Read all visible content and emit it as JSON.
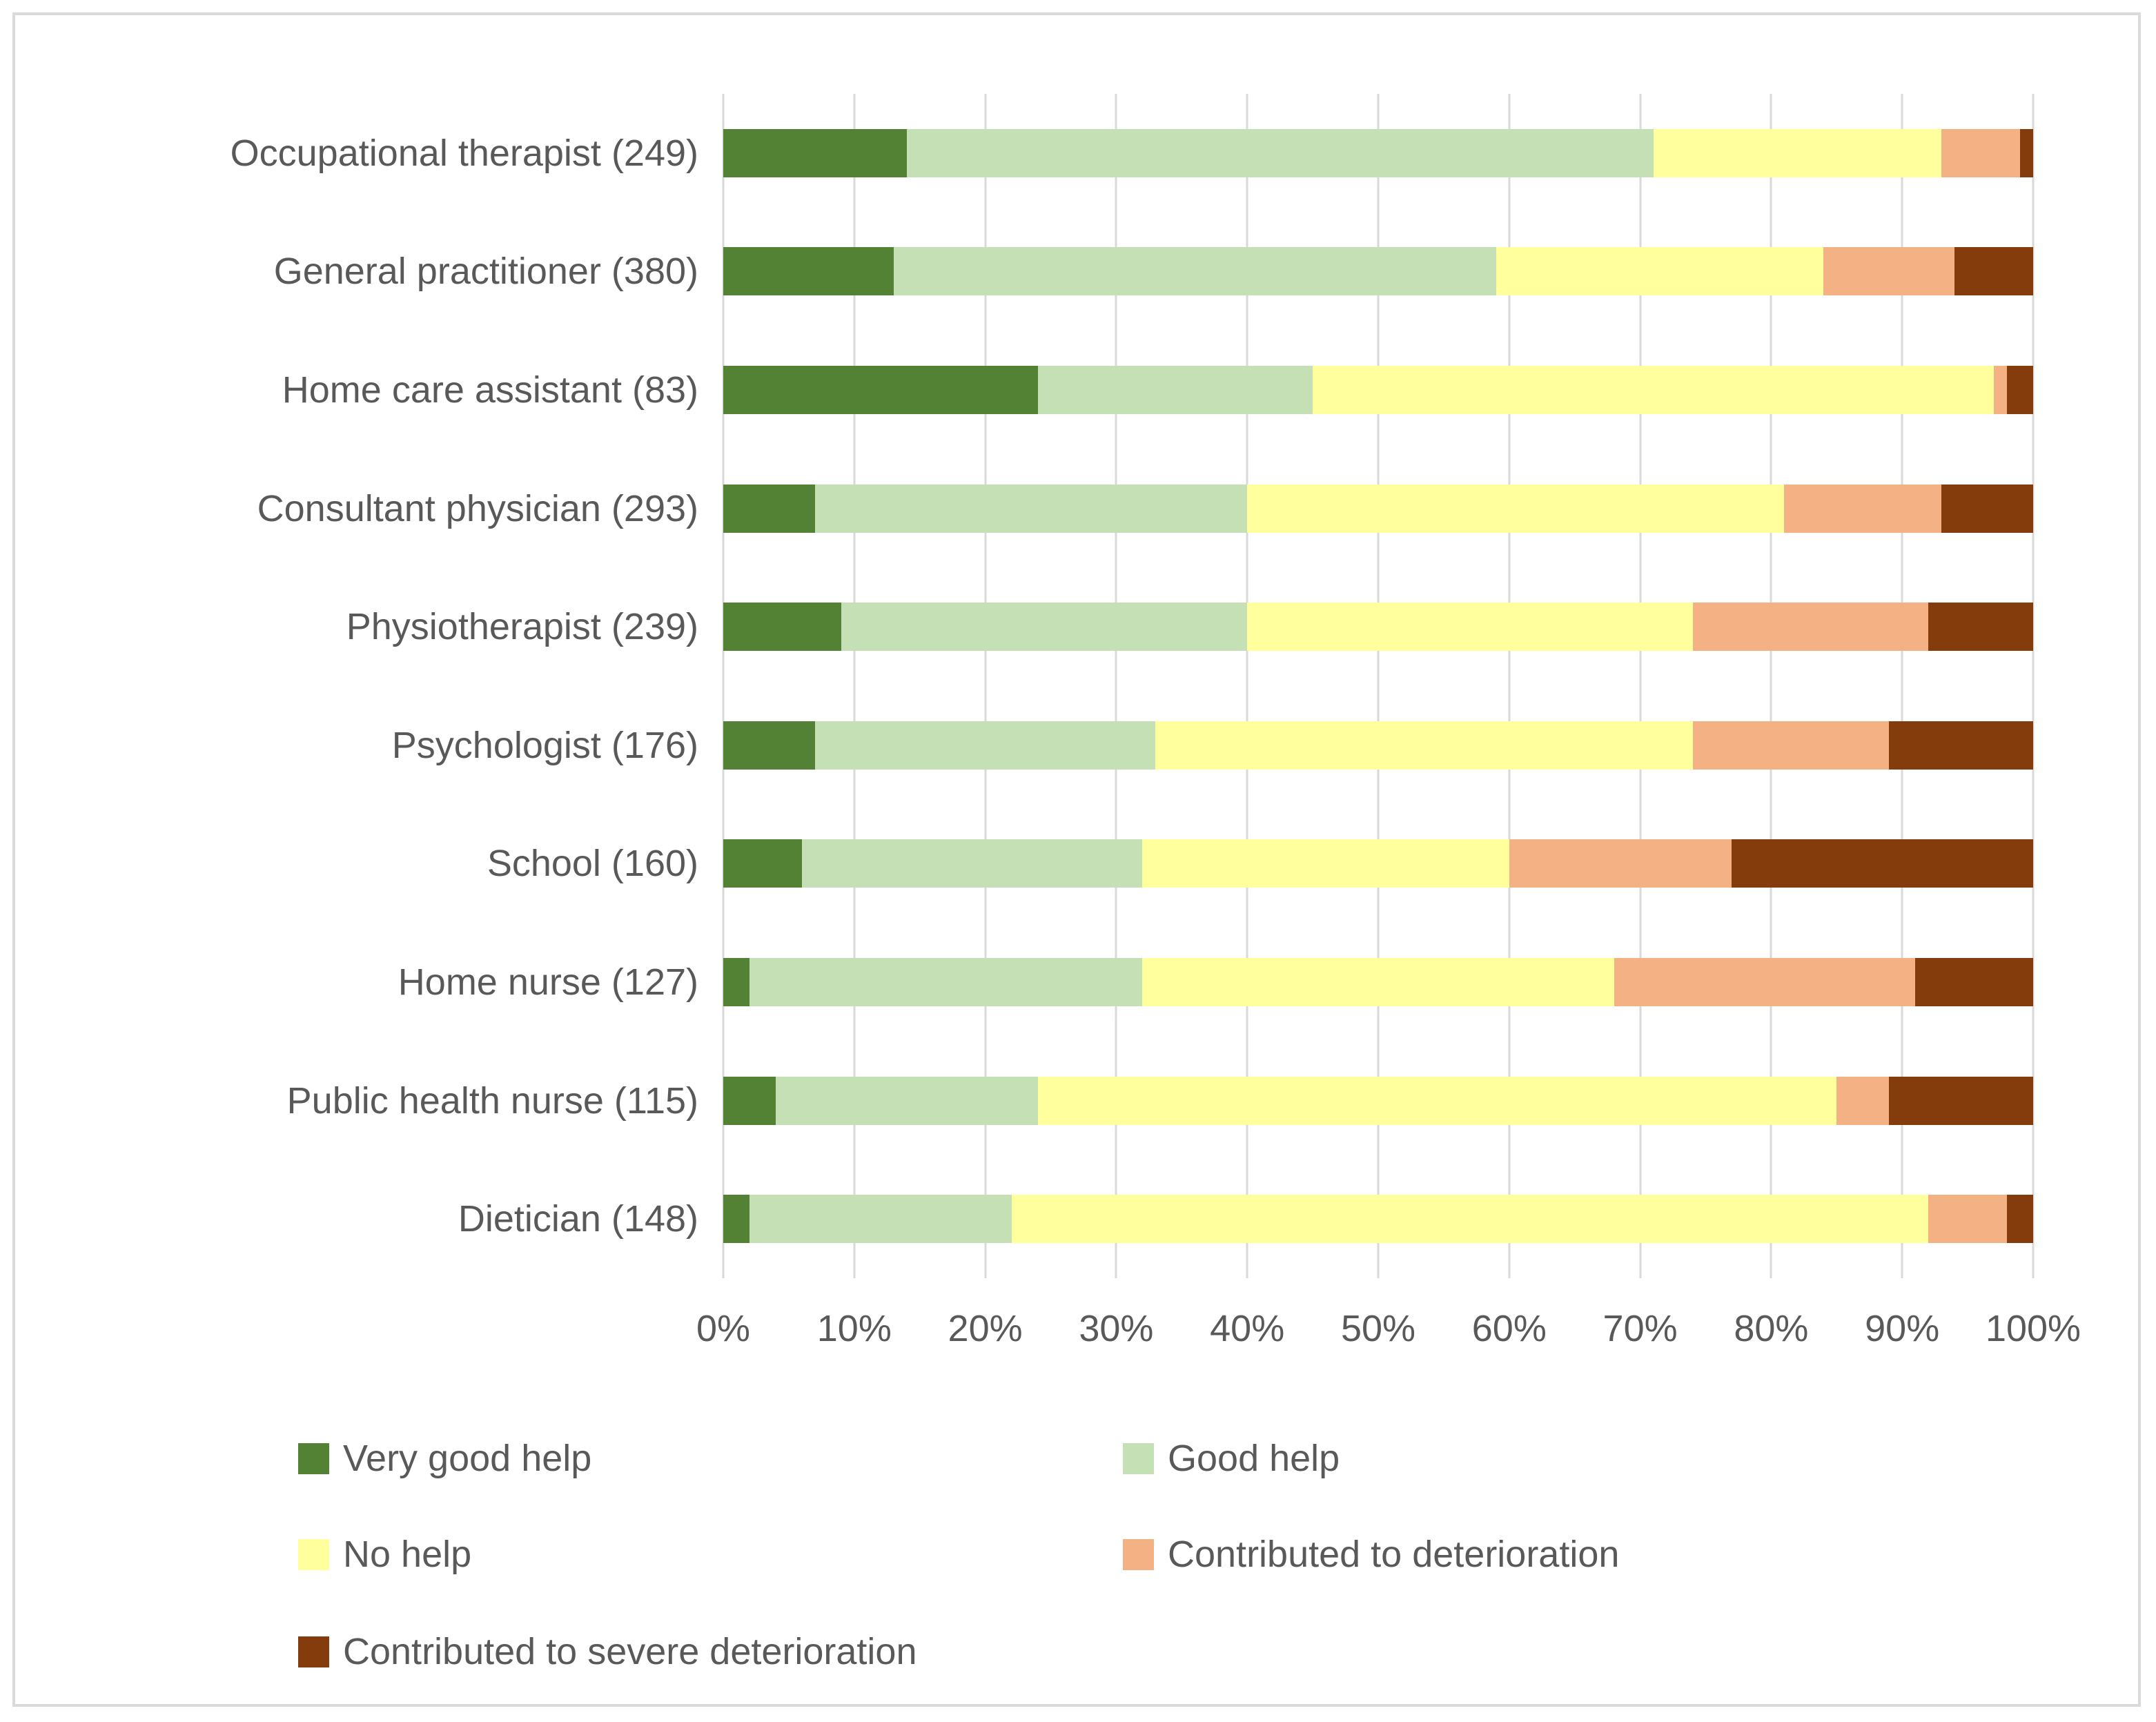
{
  "colors": {
    "grid": "#d9d9d9",
    "text": "#595959",
    "frame_border": "#dadada",
    "background": "#ffffff"
  },
  "chart_data": {
    "type": "bar",
    "orientation": "horizontal",
    "stacked": true,
    "title": "",
    "xlabel": "",
    "ylabel": "",
    "xlim": [
      0,
      100
    ],
    "grid": true,
    "xticks": [
      "0%",
      "10%",
      "20%",
      "30%",
      "40%",
      "50%",
      "60%",
      "70%",
      "80%",
      "90%",
      "100%"
    ],
    "categories": [
      "Occupational therapist (249)",
      "General practitioner (380)",
      "Home care assistant (83)",
      "Consultant physician (293)",
      "Physiotherapist (239)",
      "Psychologist (176)",
      "School (160)",
      "Home nurse (127)",
      "Public health nurse (115)",
      "Dietician (148)"
    ],
    "series": [
      {
        "name": "Very good help",
        "color": "#548235",
        "values": [
          14,
          13,
          24,
          7,
          9,
          7,
          6,
          2,
          4,
          2
        ]
      },
      {
        "name": "Good help",
        "color": "#c5e0b4",
        "values": [
          57,
          46,
          21,
          33,
          31,
          26,
          26,
          30,
          20,
          20
        ]
      },
      {
        "name": "No help",
        "color": "#ffff9e",
        "values": [
          22,
          25,
          52,
          41,
          34,
          41,
          28,
          36,
          61,
          70
        ]
      },
      {
        "name": "Contributed to deterioration",
        "color": "#f4b183",
        "values": [
          6,
          10,
          1,
          12,
          18,
          15,
          17,
          23,
          4,
          6
        ]
      },
      {
        "name": "Contributed to severe deterioration",
        "color": "#843c0c",
        "values": [
          1,
          6,
          2,
          7,
          8,
          11,
          23,
          9,
          11,
          2
        ]
      }
    ],
    "legend_position": "bottom"
  }
}
